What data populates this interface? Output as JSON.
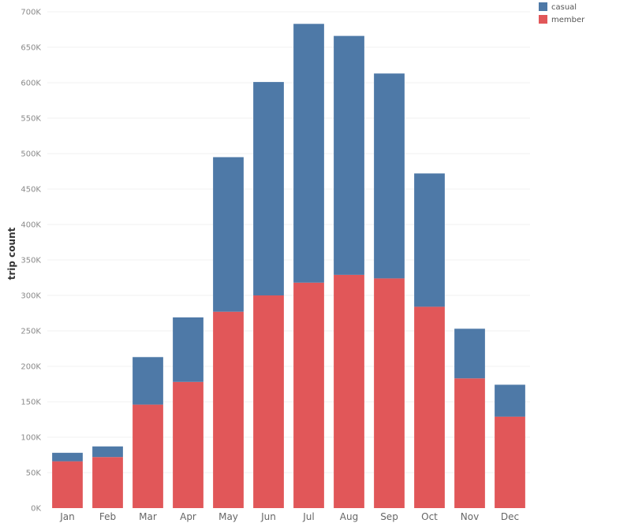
{
  "chart_data": {
    "type": "bar",
    "stacked": true,
    "title": "",
    "xlabel": "",
    "ylabel": "trip count",
    "ylim": [
      0,
      700000
    ],
    "yticks": [
      0,
      50000,
      100000,
      150000,
      200000,
      250000,
      300000,
      350000,
      400000,
      450000,
      500000,
      550000,
      600000,
      650000,
      700000
    ],
    "ytick_labels": [
      "0K",
      "50K",
      "100K",
      "150K",
      "200K",
      "250K",
      "300K",
      "350K",
      "400K",
      "450K",
      "500K",
      "550K",
      "600K",
      "650K",
      "700K"
    ],
    "grid": true,
    "legend_position": "top-right",
    "categories": [
      "Jan",
      "Feb",
      "Mar",
      "Apr",
      "May",
      "Jun",
      "Jul",
      "Aug",
      "Sep",
      "Oct",
      "Nov",
      "Dec"
    ],
    "series": [
      {
        "name": "member",
        "color": "#e15759",
        "values": [
          66000,
          72000,
          146000,
          178000,
          277000,
          300000,
          318000,
          329000,
          324000,
          284000,
          183000,
          129000
        ]
      },
      {
        "name": "casual",
        "color": "#4e79a7",
        "values": [
          12000,
          15000,
          67000,
          91000,
          218000,
          301000,
          365000,
          337000,
          289000,
          188000,
          70000,
          45000
        ]
      }
    ],
    "legend": [
      {
        "name": "casual",
        "color": "#4e79a7"
      },
      {
        "name": "member",
        "color": "#e15759"
      }
    ]
  }
}
